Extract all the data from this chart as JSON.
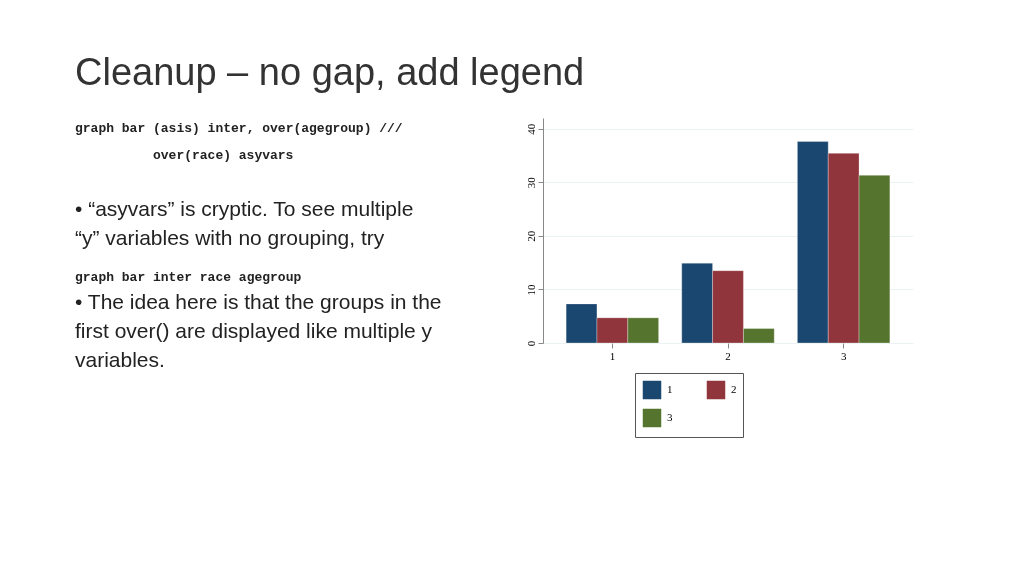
{
  "chart_data": {
    "type": "bar",
    "title": "Cleanup – no gap, add legend",
    "annotations": [
      "graph bar (asis) inter, over(agegroup) ///",
      "over(race) asyvars",
      "• “asyvars” is cryptic.  To see multiple “y” variables with no grouping, try",
      "graph bar inter race agegroup",
      "• The idea here is that the groups in the first over() are displayed like multiple y variables."
    ],
    "categories": [
      "1",
      "2",
      "3"
    ],
    "series": [
      {
        "name": "1",
        "color": "#1a476f",
        "values": [
          7.3,
          14.9,
          37.6
        ]
      },
      {
        "name": "2",
        "color": "#90353b",
        "values": [
          4.7,
          13.5,
          35.4
        ]
      },
      {
        "name": "3",
        "color": "#55752f",
        "values": [
          4.7,
          2.7,
          31.3
        ]
      }
    ],
    "ylim": [
      0,
      42
    ],
    "yticks": [
      0,
      10,
      20,
      30,
      40
    ],
    "grid": "y",
    "legend": "bottom"
  }
}
